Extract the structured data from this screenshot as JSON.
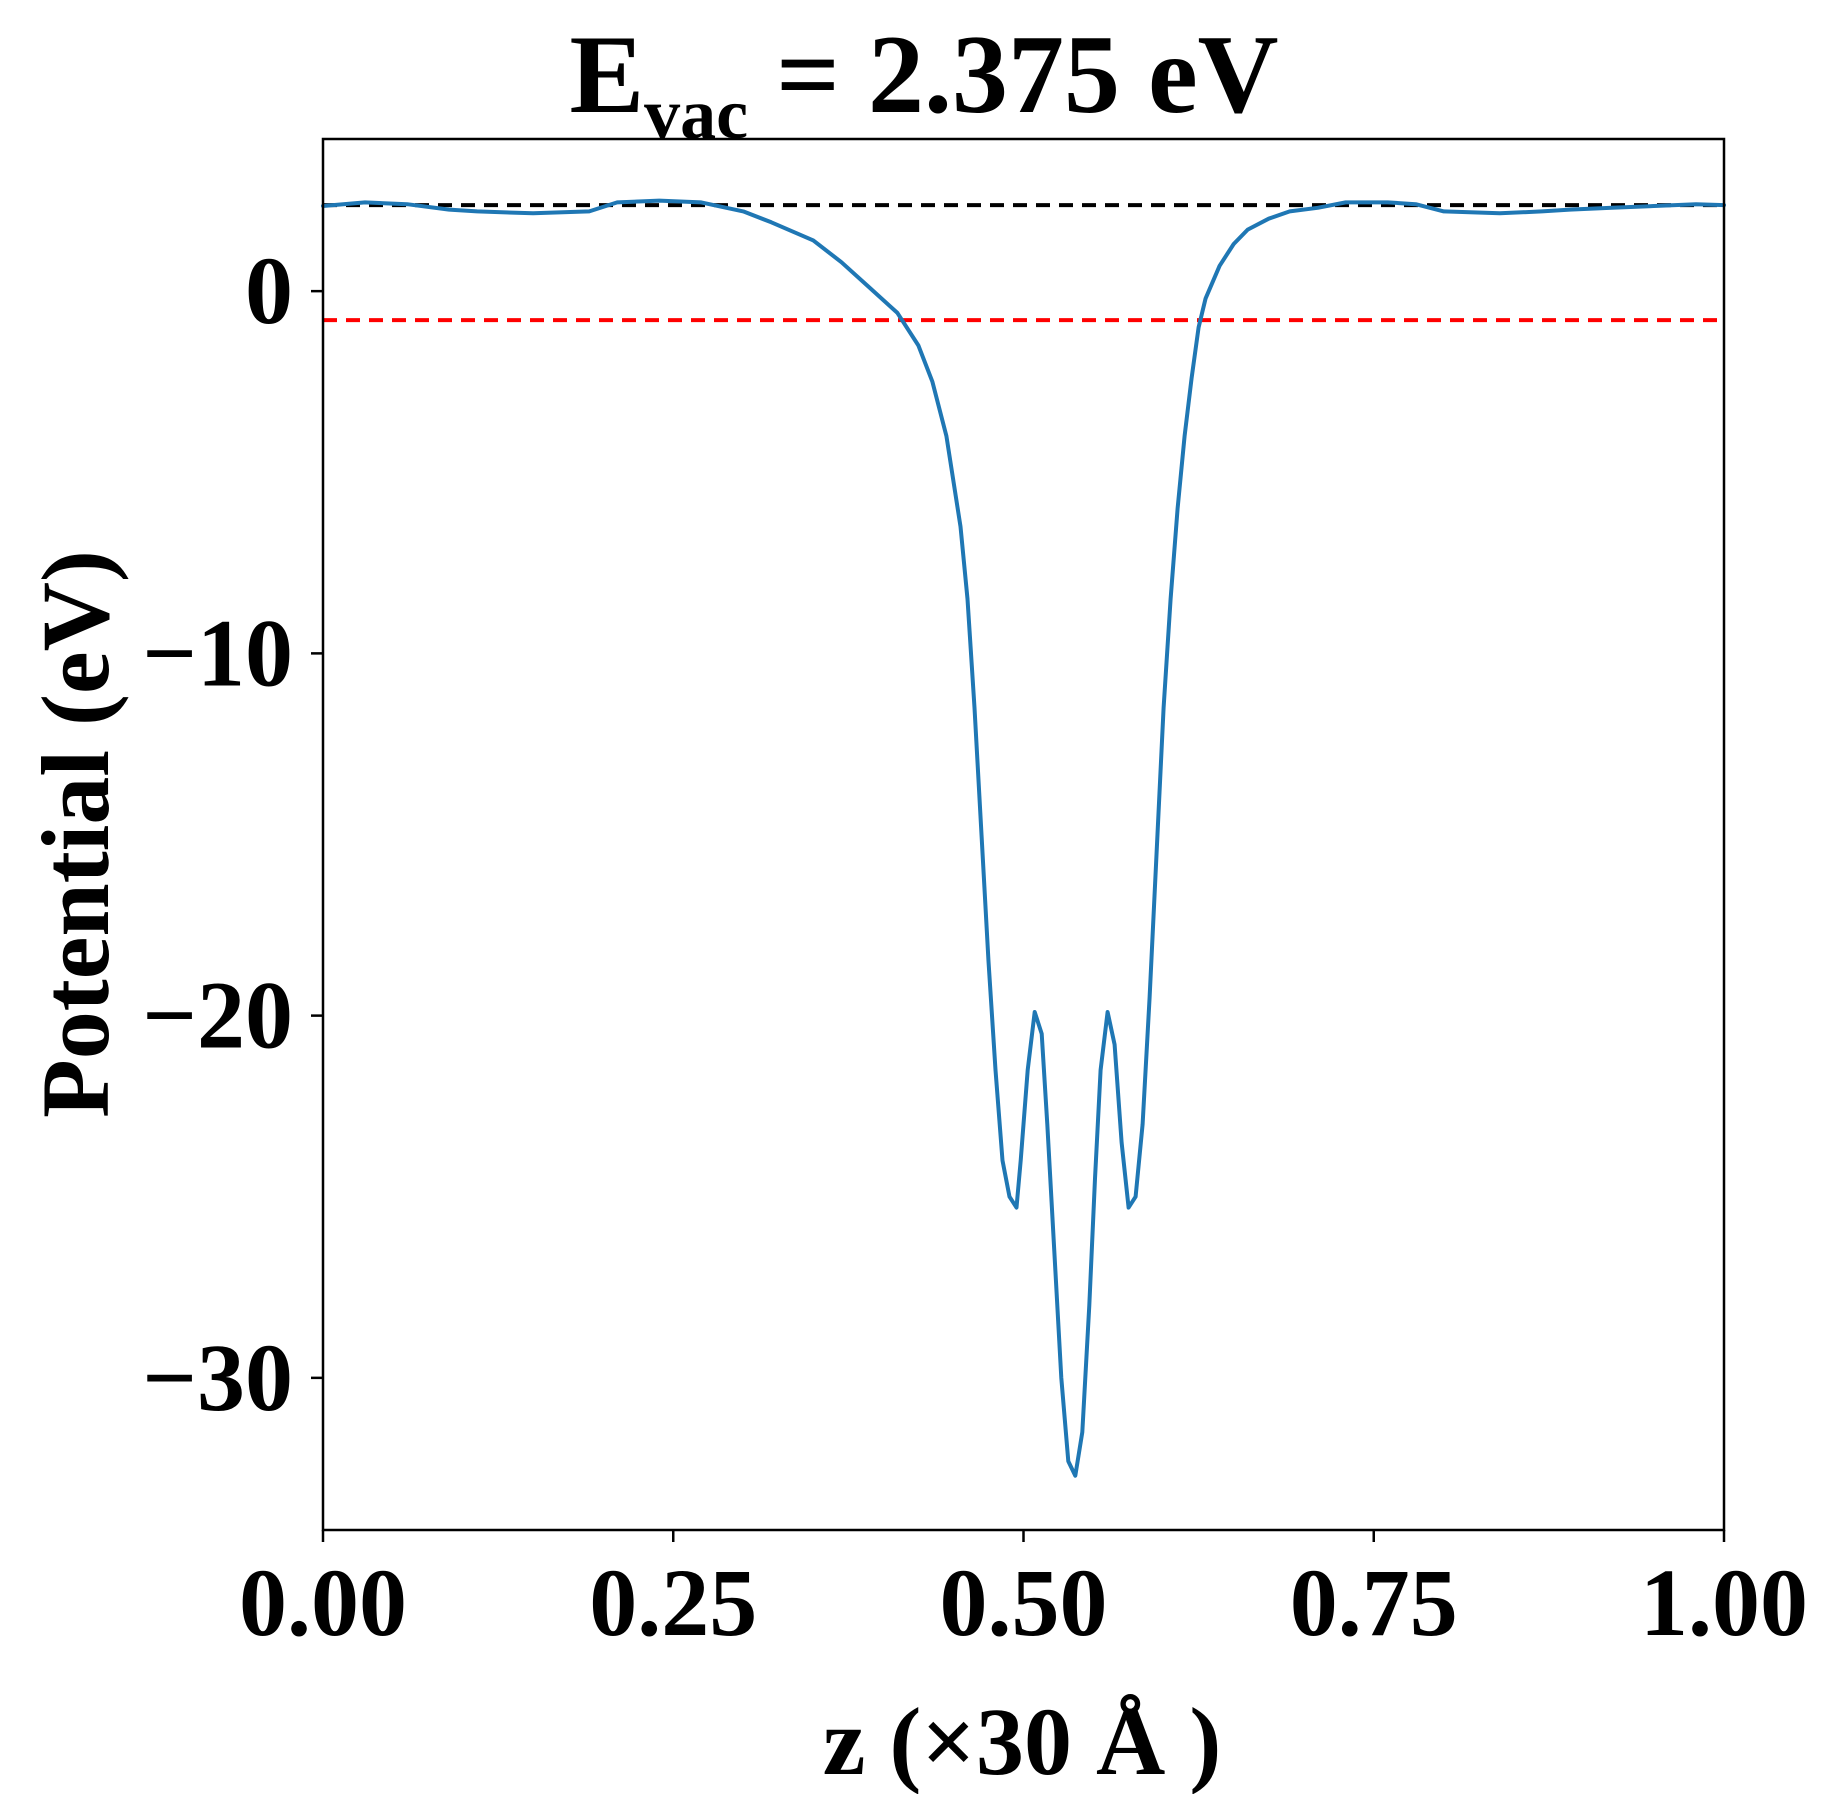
{
  "chart_data": {
    "type": "line",
    "title": {
      "prefix": "E",
      "subscript": "vac",
      "suffix": " = 2.375 eV"
    },
    "xlabel": "z (×30 Å )",
    "ylabel": "Potential (eV)",
    "xlim": [
      0,
      1
    ],
    "ylim": [
      -34.2,
      4.2
    ],
    "grid": false,
    "xticks": [
      {
        "value": 0.0,
        "label": "0.00"
      },
      {
        "value": 0.25,
        "label": "0.25"
      },
      {
        "value": 0.5,
        "label": "0.50"
      },
      {
        "value": 0.75,
        "label": "0.75"
      },
      {
        "value": 1.0,
        "label": "1.00"
      }
    ],
    "yticks": [
      {
        "value": 0,
        "label": "0"
      },
      {
        "value": -10,
        "label": "−10"
      },
      {
        "value": -20,
        "label": "−20"
      },
      {
        "value": -30,
        "label": "−30"
      }
    ],
    "reference_lines": [
      {
        "y": 2.375,
        "color": "#000000",
        "style": "dashed"
      },
      {
        "y": -0.8,
        "color": "#ff0000",
        "style": "dashed"
      }
    ],
    "series": [
      {
        "color": "#1f77b4",
        "x": [
          0,
          0.03,
          0.06,
          0.09,
          0.11,
          0.15,
          0.19,
          0.21,
          0.24,
          0.27,
          0.3,
          0.32,
          0.35,
          0.37,
          0.39,
          0.41,
          0.425,
          0.435,
          0.445,
          0.455,
          0.46,
          0.465,
          0.47,
          0.475,
          0.48,
          0.485,
          0.49,
          0.495,
          0.498,
          0.503,
          0.508,
          0.513,
          0.517,
          0.522,
          0.527,
          0.532,
          0.537,
          0.542,
          0.547,
          0.551,
          0.555,
          0.56,
          0.565,
          0.57,
          0.575,
          0.58,
          0.585,
          0.59,
          0.595,
          0.6,
          0.605,
          0.61,
          0.615,
          0.62,
          0.625,
          0.63,
          0.64,
          0.65,
          0.66,
          0.675,
          0.69,
          0.71,
          0.73,
          0.76,
          0.78,
          0.8,
          0.84,
          0.87,
          0.89,
          0.92,
          0.95,
          0.98,
          1.0
        ],
        "y": [
          2.35,
          2.45,
          2.4,
          2.25,
          2.2,
          2.15,
          2.2,
          2.45,
          2.5,
          2.45,
          2.2,
          1.9,
          1.4,
          0.8,
          0.1,
          -0.6,
          -1.5,
          -2.5,
          -4.0,
          -6.5,
          -8.5,
          -11.5,
          -15.0,
          -18.5,
          -21.5,
          -24.0,
          -25.0,
          -25.3,
          -24.0,
          -21.5,
          -19.9,
          -20.5,
          -23.0,
          -26.5,
          -30.0,
          -32.3,
          -32.7,
          -31.5,
          -28.0,
          -24.5,
          -21.5,
          -19.9,
          -20.8,
          -23.5,
          -25.3,
          -25.0,
          -23.0,
          -19.5,
          -15.5,
          -11.5,
          -8.5,
          -6.0,
          -4.0,
          -2.4,
          -1.0,
          -0.2,
          0.7,
          1.3,
          1.7,
          2.0,
          2.2,
          2.3,
          2.45,
          2.45,
          2.4,
          2.2,
          2.15,
          2.2,
          2.25,
          2.3,
          2.35,
          2.4,
          2.375
        ]
      }
    ]
  }
}
